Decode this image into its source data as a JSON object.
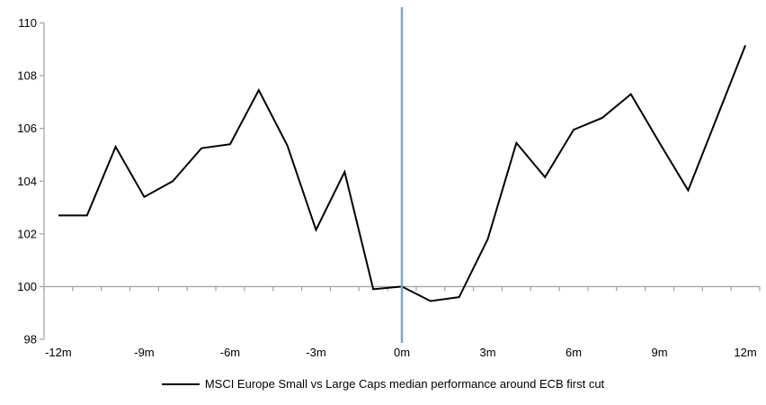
{
  "chart_data": {
    "type": "line",
    "x": [
      "-12m",
      "-11m",
      "-10m",
      "-9m",
      "-8m",
      "-7m",
      "-6m",
      "-5m",
      "-4m",
      "-3m",
      "-2m",
      "-1m",
      "0m",
      "1m",
      "2m",
      "3m",
      "4m",
      "5m",
      "6m",
      "7m",
      "8m",
      "9m",
      "10m",
      "11m",
      "12m"
    ],
    "series": [
      {
        "name": "MSCI Europe Small vs Large Caps median performance around ECB first cut",
        "values": [
          102.7,
          102.7,
          105.3,
          103.4,
          104.0,
          105.25,
          105.4,
          107.45,
          105.35,
          102.15,
          104.35,
          99.9,
          100.0,
          99.45,
          99.6,
          101.8,
          105.45,
          104.15,
          105.95,
          106.4,
          107.3,
          105.45,
          103.65,
          106.4,
          109.15
        ]
      }
    ],
    "x_tick_labels": [
      "-12m",
      "-9m",
      "-6m",
      "-3m",
      "0m",
      "3m",
      "6m",
      "9m",
      "12m"
    ],
    "y_ticks": [
      98,
      100,
      102,
      104,
      106,
      108,
      110
    ],
    "ylim": [
      98,
      110
    ],
    "baseline": 100,
    "event_line_x": "0m",
    "legend_position": "bottom",
    "grid": "baseline-only",
    "colors": {
      "line": "#000000",
      "event_line": "#7EA6CE",
      "axis": "#A6A6A6",
      "text": "#000000"
    }
  }
}
